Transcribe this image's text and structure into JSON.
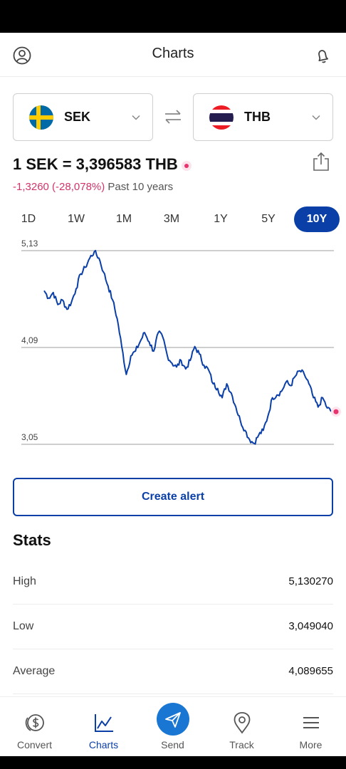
{
  "header": {
    "title": "Charts",
    "profile_icon": "profile-icon",
    "bell_icon": "bell-icon"
  },
  "converter": {
    "from": {
      "code": "SEK",
      "flag": "sweden-flag"
    },
    "to": {
      "code": "THB",
      "flag": "thailand-flag"
    },
    "swap_icon": "swap-arrows-icon"
  },
  "rate": {
    "text": "1 SEK = 3,396583 THB",
    "change": "-1,3260 (-28,078%)",
    "period": "Past 10 years",
    "share_icon": "share-icon"
  },
  "ranges": {
    "items": [
      "1D",
      "1W",
      "1M",
      "3M",
      "1Y",
      "5Y",
      "10Y"
    ],
    "selected": "10Y"
  },
  "chart_data": {
    "type": "line",
    "ytick_labels": [
      "5,13",
      "4,09",
      "3,05"
    ],
    "yticks": [
      5.13,
      4.09,
      3.05
    ],
    "ylim": [
      3.05,
      5.13
    ],
    "grid": true,
    "color": "#0a3fa8",
    "series": [
      {
        "values": [
          4.7,
          4.62,
          4.68,
          4.55,
          4.6,
          4.5,
          4.58,
          4.72,
          4.88,
          4.95,
          5.05,
          5.12,
          5.05,
          4.9,
          4.75,
          4.6,
          4.4,
          4.1,
          3.8,
          4.0,
          4.05,
          4.15,
          4.25,
          4.15,
          4.05,
          4.25,
          4.2,
          4.0,
          3.92,
          3.88,
          3.95,
          3.86,
          3.95,
          4.1,
          4.02,
          3.9,
          3.85,
          3.7,
          3.65,
          3.55,
          3.7,
          3.6,
          3.45,
          3.3,
          3.2,
          3.1,
          3.06,
          3.15,
          3.2,
          3.35,
          3.55,
          3.58,
          3.62,
          3.72,
          3.68,
          3.78,
          3.84,
          3.8,
          3.7,
          3.55,
          3.45,
          3.55,
          3.44,
          3.4
        ]
      }
    ],
    "current_marker_color": "#e8336d"
  },
  "alert": {
    "label": "Create alert"
  },
  "stats": {
    "title": "Stats",
    "rows": [
      {
        "label": "High",
        "value": "5,130270"
      },
      {
        "label": "Low",
        "value": "3,049040"
      },
      {
        "label": "Average",
        "value": "4,089655"
      }
    ]
  },
  "nav": {
    "items": [
      {
        "label": "Convert",
        "icon": "convert-coins-icon"
      },
      {
        "label": "Charts",
        "icon": "chart-line-icon"
      },
      {
        "label": "Send",
        "icon": "send-plane-icon"
      },
      {
        "label": "Track",
        "icon": "location-pin-icon"
      },
      {
        "label": "More",
        "icon": "menu-icon"
      }
    ],
    "active": "Charts"
  },
  "colors": {
    "brand": "#0a3fa8",
    "negative": "#d2346a",
    "send": "#1976d2"
  }
}
